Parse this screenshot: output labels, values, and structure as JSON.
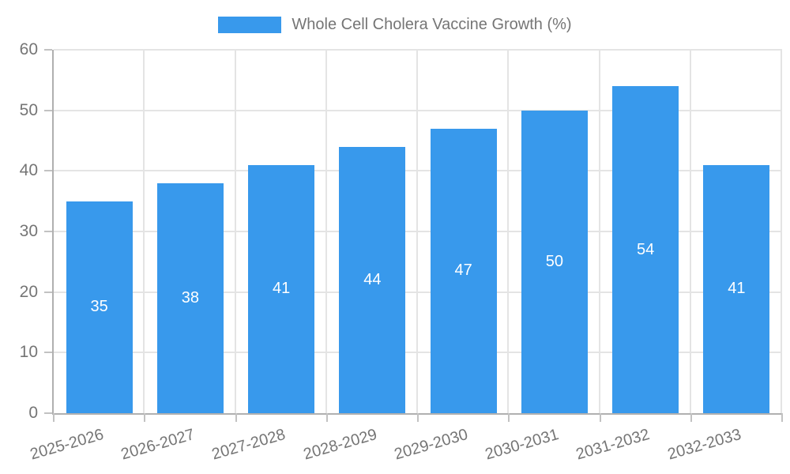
{
  "chart_data": {
    "type": "bar",
    "title": "",
    "xlabel": "",
    "ylabel": "",
    "legend": {
      "label": "Whole Cell Cholera Vaccine Growth (%)",
      "position": "top"
    },
    "categories": [
      "2025-2026",
      "2026-2027",
      "2027-2028",
      "2028-2029",
      "2029-2030",
      "2030-2031",
      "2031-2032",
      "2032-2033"
    ],
    "series": [
      {
        "name": "Whole Cell Cholera Vaccine Growth (%)",
        "values": [
          35,
          38,
          41,
          44,
          47,
          50,
          54,
          41
        ]
      }
    ],
    "value_labels_shown": true,
    "ylim": [
      0,
      60
    ],
    "yticks": [
      0,
      10,
      20,
      30,
      40,
      50,
      60
    ],
    "grid": true,
    "colors": {
      "bar": "#3899EC",
      "gridline": "#e4e4e4",
      "axis_line": "#b0b0b0",
      "tick_mark": "#c2c2c2",
      "axis_text": "#757575",
      "value_label_text": "#ffffff",
      "background": "#ffffff"
    }
  }
}
